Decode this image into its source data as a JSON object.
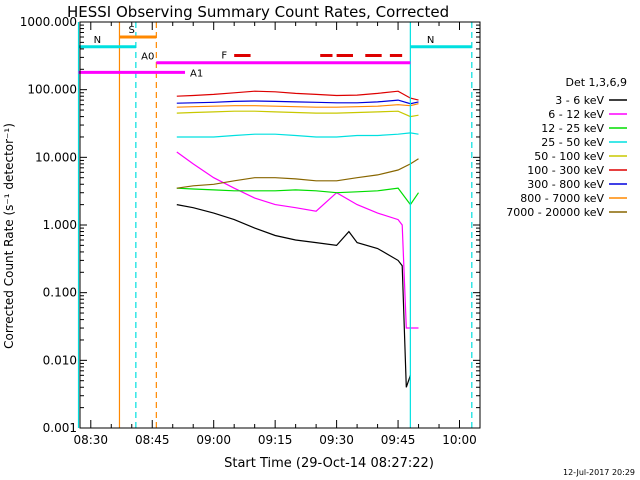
{
  "chart_data": {
    "type": "line",
    "title": "HESSI Observing Summary Count Rates, Corrected",
    "xlabel": "Start Time (29-Oct-14 08:27:22)",
    "ylabel": "Corrected Count Rate (s⁻¹ detector⁻¹)",
    "yscale": "log",
    "ylim": [
      0.001,
      1000
    ],
    "xlim": [
      "08:27:22",
      "10:05:00"
    ],
    "x_ticks": [
      "08:30",
      "08:45",
      "09:00",
      "09:15",
      "09:30",
      "09:45",
      "10:00"
    ],
    "y_ticks": [
      "0.001",
      "0.010",
      "0.100",
      "1.000",
      "10.000",
      "100.000",
      "1000.000"
    ],
    "legend_title": "Det 1,3,6,9",
    "legend_position": "right",
    "date_stamp": "12-Jul-2017 20:29",
    "series": [
      {
        "name": "3 - 6 keV",
        "color": "#000000",
        "x": [
          "08:51",
          "08:55",
          "09:00",
          "09:05",
          "09:10",
          "09:15",
          "09:20",
          "09:25",
          "09:30",
          "09:33",
          "09:35",
          "09:40",
          "09:45",
          "09:46",
          "09:47",
          "09:48"
        ],
        "y": [
          2.0,
          1.8,
          1.5,
          1.2,
          0.9,
          0.7,
          0.6,
          0.55,
          0.5,
          0.8,
          0.55,
          0.45,
          0.3,
          0.25,
          0.004,
          0.006
        ]
      },
      {
        "name": "6 - 12 keV",
        "color": "#ff00ff",
        "x": [
          "08:51",
          "08:55",
          "09:00",
          "09:05",
          "09:10",
          "09:15",
          "09:20",
          "09:25",
          "09:30",
          "09:35",
          "09:40",
          "09:45",
          "09:46",
          "09:47",
          "09:50"
        ],
        "y": [
          12,
          8,
          5,
          3.5,
          2.5,
          2.0,
          1.8,
          1.6,
          3.0,
          2.0,
          1.5,
          1.2,
          1.0,
          0.03,
          0.03
        ]
      },
      {
        "name": "12 - 25 keV",
        "color": "#00dd00",
        "x": [
          "08:51",
          "08:55",
          "09:00",
          "09:05",
          "09:10",
          "09:15",
          "09:20",
          "09:25",
          "09:30",
          "09:35",
          "09:40",
          "09:45",
          "09:48",
          "09:50"
        ],
        "y": [
          3.5,
          3.4,
          3.3,
          3.2,
          3.2,
          3.2,
          3.3,
          3.2,
          3.0,
          3.1,
          3.2,
          3.5,
          2.0,
          3.0
        ]
      },
      {
        "name": "25 - 50 keV",
        "color": "#00e0e0",
        "x": [
          "08:51",
          "08:55",
          "09:00",
          "09:05",
          "09:10",
          "09:15",
          "09:20",
          "09:25",
          "09:30",
          "09:35",
          "09:40",
          "09:45",
          "09:48",
          "09:50"
        ],
        "y": [
          20,
          20,
          20,
          21,
          22,
          22,
          21,
          20,
          20,
          21,
          21,
          22,
          23,
          22
        ]
      },
      {
        "name": "50 - 100 keV",
        "color": "#c8c800",
        "x": [
          "08:51",
          "08:55",
          "09:00",
          "09:05",
          "09:10",
          "09:15",
          "09:20",
          "09:25",
          "09:30",
          "09:35",
          "09:40",
          "09:45",
          "09:48",
          "09:50"
        ],
        "y": [
          45,
          46,
          47,
          48,
          48,
          47,
          46,
          45,
          45,
          46,
          47,
          48,
          40,
          42
        ]
      },
      {
        "name": "100 - 300 keV",
        "color": "#dd0000",
        "x": [
          "08:51",
          "08:55",
          "09:00",
          "09:05",
          "09:10",
          "09:15",
          "09:20",
          "09:25",
          "09:30",
          "09:35",
          "09:40",
          "09:45",
          "09:48",
          "09:50"
        ],
        "y": [
          80,
          82,
          85,
          90,
          95,
          93,
          88,
          85,
          82,
          83,
          88,
          95,
          75,
          70
        ]
      },
      {
        "name": "300 - 800 keV",
        "color": "#0000dd",
        "x": [
          "08:51",
          "08:55",
          "09:00",
          "09:05",
          "09:10",
          "09:15",
          "09:20",
          "09:25",
          "09:30",
          "09:35",
          "09:40",
          "09:45",
          "09:48",
          "09:50"
        ],
        "y": [
          63,
          64,
          65,
          67,
          68,
          67,
          66,
          65,
          64,
          64,
          66,
          70,
          62,
          66
        ]
      },
      {
        "name": "800 - 7000 keV",
        "color": "#ff8800",
        "x": [
          "08:51",
          "08:55",
          "09:00",
          "09:05",
          "09:10",
          "09:15",
          "09:20",
          "09:25",
          "09:30",
          "09:35",
          "09:40",
          "09:45",
          "09:48",
          "09:50"
        ],
        "y": [
          55,
          56,
          57,
          58,
          58,
          57,
          56,
          55,
          55,
          56,
          57,
          60,
          58,
          62
        ]
      },
      {
        "name": "7000 - 20000 keV",
        "color": "#886600",
        "x": [
          "08:51",
          "08:55",
          "09:00",
          "09:05",
          "09:10",
          "09:15",
          "09:20",
          "09:25",
          "09:30",
          "09:35",
          "09:40",
          "09:45",
          "09:48",
          "09:50"
        ],
        "y": [
          3.5,
          3.8,
          4.0,
          4.5,
          5.0,
          5.0,
          4.8,
          4.5,
          4.5,
          5.0,
          5.5,
          6.5,
          8.0,
          9.5
        ]
      }
    ],
    "flags": [
      {
        "label": "S",
        "color": "#ff8800",
        "y": 600,
        "x_start": "08:37",
        "x_end": "08:46"
      },
      {
        "label": "N",
        "color": "#00e0e0",
        "y": 430,
        "x_start": "08:27",
        "x_end": "08:41"
      },
      {
        "label": "N",
        "color": "#00e0e0",
        "y": 430,
        "x_start": "09:48",
        "x_end": "10:03"
      },
      {
        "label": "A0",
        "color": "#ff00ff",
        "y": 250,
        "x_start": "08:46",
        "x_end": "09:48"
      },
      {
        "label": "A1",
        "color": "#ff00ff",
        "y": 180,
        "x_start": "08:27",
        "x_end": "08:53"
      },
      {
        "label": "F",
        "color": "#dd0000",
        "y": 320,
        "segments": [
          [
            "09:05",
            "09:09"
          ],
          [
            "09:26",
            "09:29"
          ],
          [
            "09:30",
            "09:34"
          ],
          [
            "09:37",
            "09:41"
          ],
          [
            "09:43",
            "09:46"
          ]
        ]
      }
    ],
    "vertical_lines": [
      {
        "x": "08:27",
        "color": "#00e0e0",
        "style": "solid"
      },
      {
        "x": "08:37",
        "color": "#ff8800",
        "style": "solid"
      },
      {
        "x": "08:41",
        "color": "#00e0e0",
        "style": "dashed"
      },
      {
        "x": "08:46",
        "color": "#ff8800",
        "style": "dashed"
      },
      {
        "x": "09:48",
        "color": "#00e0e0",
        "style": "solid"
      },
      {
        "x": "10:03",
        "color": "#00e0e0",
        "style": "dashed"
      }
    ]
  }
}
